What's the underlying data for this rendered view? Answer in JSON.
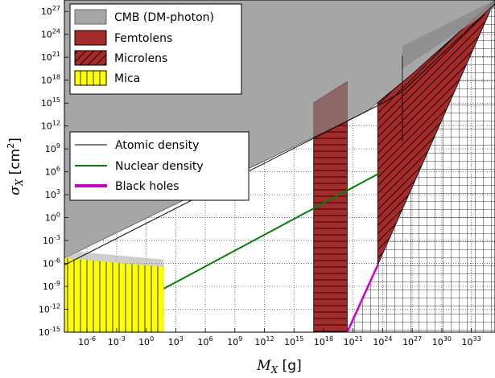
{
  "chart_data": {
    "type": "area",
    "xlabel": {
      "symbol": "M",
      "sub": "X",
      "unit": " [g]"
    },
    "ylabel": {
      "symbol": "σ",
      "sub": "X",
      "unit": " [cm",
      "unit_sup": "2",
      "unit_end": "]"
    },
    "xlim_log10": [
      -8.3,
      35.4
    ],
    "ylim_log10": [
      -15,
      28.5
    ],
    "xscale": "log",
    "yscale": "log",
    "grid": true,
    "x_ticks": [
      {
        "base": "10",
        "exp": "-6",
        "log": -6
      },
      {
        "base": "10",
        "exp": "-3",
        "log": -3
      },
      {
        "base": "10",
        "exp": "0",
        "log": 0
      },
      {
        "base": "10",
        "exp": "3",
        "log": 3
      },
      {
        "base": "10",
        "exp": "6",
        "log": 6
      },
      {
        "base": "10",
        "exp": "9",
        "log": 9
      },
      {
        "base": "10",
        "exp": "12",
        "log": 12
      },
      {
        "base": "10",
        "exp": "15",
        "log": 15
      },
      {
        "base": "10",
        "exp": "18",
        "log": 18
      },
      {
        "base": "10",
        "exp": "21",
        "log": 21
      },
      {
        "base": "10",
        "exp": "24",
        "log": 24
      },
      {
        "base": "10",
        "exp": "27",
        "log": 27
      },
      {
        "base": "10",
        "exp": "30",
        "log": 30
      },
      {
        "base": "10",
        "exp": "33",
        "log": 33
      }
    ],
    "y_ticks": [
      {
        "base": "10",
        "exp": "-15",
        "log": -15
      },
      {
        "base": "10",
        "exp": "-12",
        "log": -12
      },
      {
        "base": "10",
        "exp": "-9",
        "log": -9
      },
      {
        "base": "10",
        "exp": "-6",
        "log": -6
      },
      {
        "base": "10",
        "exp": "-3",
        "log": -3
      },
      {
        "base": "10",
        "exp": "0",
        "log": 0
      },
      {
        "base": "10",
        "exp": "3",
        "log": 3
      },
      {
        "base": "10",
        "exp": "6",
        "log": 6
      },
      {
        "base": "10",
        "exp": "9",
        "log": 9
      },
      {
        "base": "10",
        "exp": "12",
        "log": 12
      },
      {
        "base": "10",
        "exp": "15",
        "log": 15
      },
      {
        "base": "10",
        "exp": "18",
        "log": 18
      },
      {
        "base": "10",
        "exp": "21",
        "log": 21
      },
      {
        "base": "10",
        "exp": "24",
        "log": 24
      },
      {
        "base": "10",
        "exp": "27",
        "log": 27
      }
    ],
    "regions": [
      {
        "key": "cmb",
        "name": "CMB (DM-photon)",
        "fill": "#a6a6a6",
        "hatch": "none",
        "boundary_log10": [
          [
            -8.3,
            -5.3
          ],
          [
            22.5,
            14
          ],
          [
            27,
            18.8
          ],
          [
            35.4,
            28.5
          ]
        ]
      },
      {
        "key": "mica",
        "name": "Mica",
        "fill": "#ffff00",
        "hatch": "vertical",
        "mass_range_log10": [
          -8.3,
          1.8
        ],
        "sigma_upper_at_mass_max_log10": -6.5
      },
      {
        "key": "femtolens",
        "name": "Femtolens",
        "fill": "#a52a2a",
        "hatch": "horizontal",
        "mass_range_log10": [
          17,
          20.4
        ]
      },
      {
        "key": "microlens",
        "name": "Microlens",
        "fill": "#a52a2a",
        "hatch": "diagonal",
        "mass_range_log10": [
          23.5,
          35.4
        ]
      },
      {
        "key": "unhatched_excluded",
        "name": "",
        "fill": "none",
        "hatch": "grid",
        "mass_range_log10": [
          20.4,
          35.4
        ]
      }
    ],
    "series": [
      {
        "key": "atomic",
        "name": "Atomic density",
        "color": "#000000",
        "points_log10": [
          [
            -8.3,
            -6.2
          ],
          [
            24,
            15
          ],
          [
            26,
            16.5
          ],
          [
            35.4,
            28
          ]
        ]
      },
      {
        "key": "nuclear",
        "name": "Nuclear density",
        "color": "#008000",
        "points_log10": [
          [
            1.8,
            -9.3
          ],
          [
            23.5,
            5.7
          ]
        ]
      },
      {
        "key": "black_holes",
        "name": "Black holes",
        "color": "#cc00cc",
        "points_log10": [
          [
            20.4,
            -15
          ],
          [
            23.5,
            -6.2
          ]
        ]
      }
    ],
    "legend_regions": {
      "position": "top-left",
      "entries": [
        "cmb",
        "femtolens",
        "microlens",
        "mica"
      ]
    },
    "legend_lines": {
      "position": "center-left",
      "entries": [
        "atomic",
        "nuclear",
        "black_holes"
      ]
    },
    "colors": {
      "background": "#ffffff",
      "grid": "#555555",
      "femto_top": "#8c5c5c"
    }
  }
}
